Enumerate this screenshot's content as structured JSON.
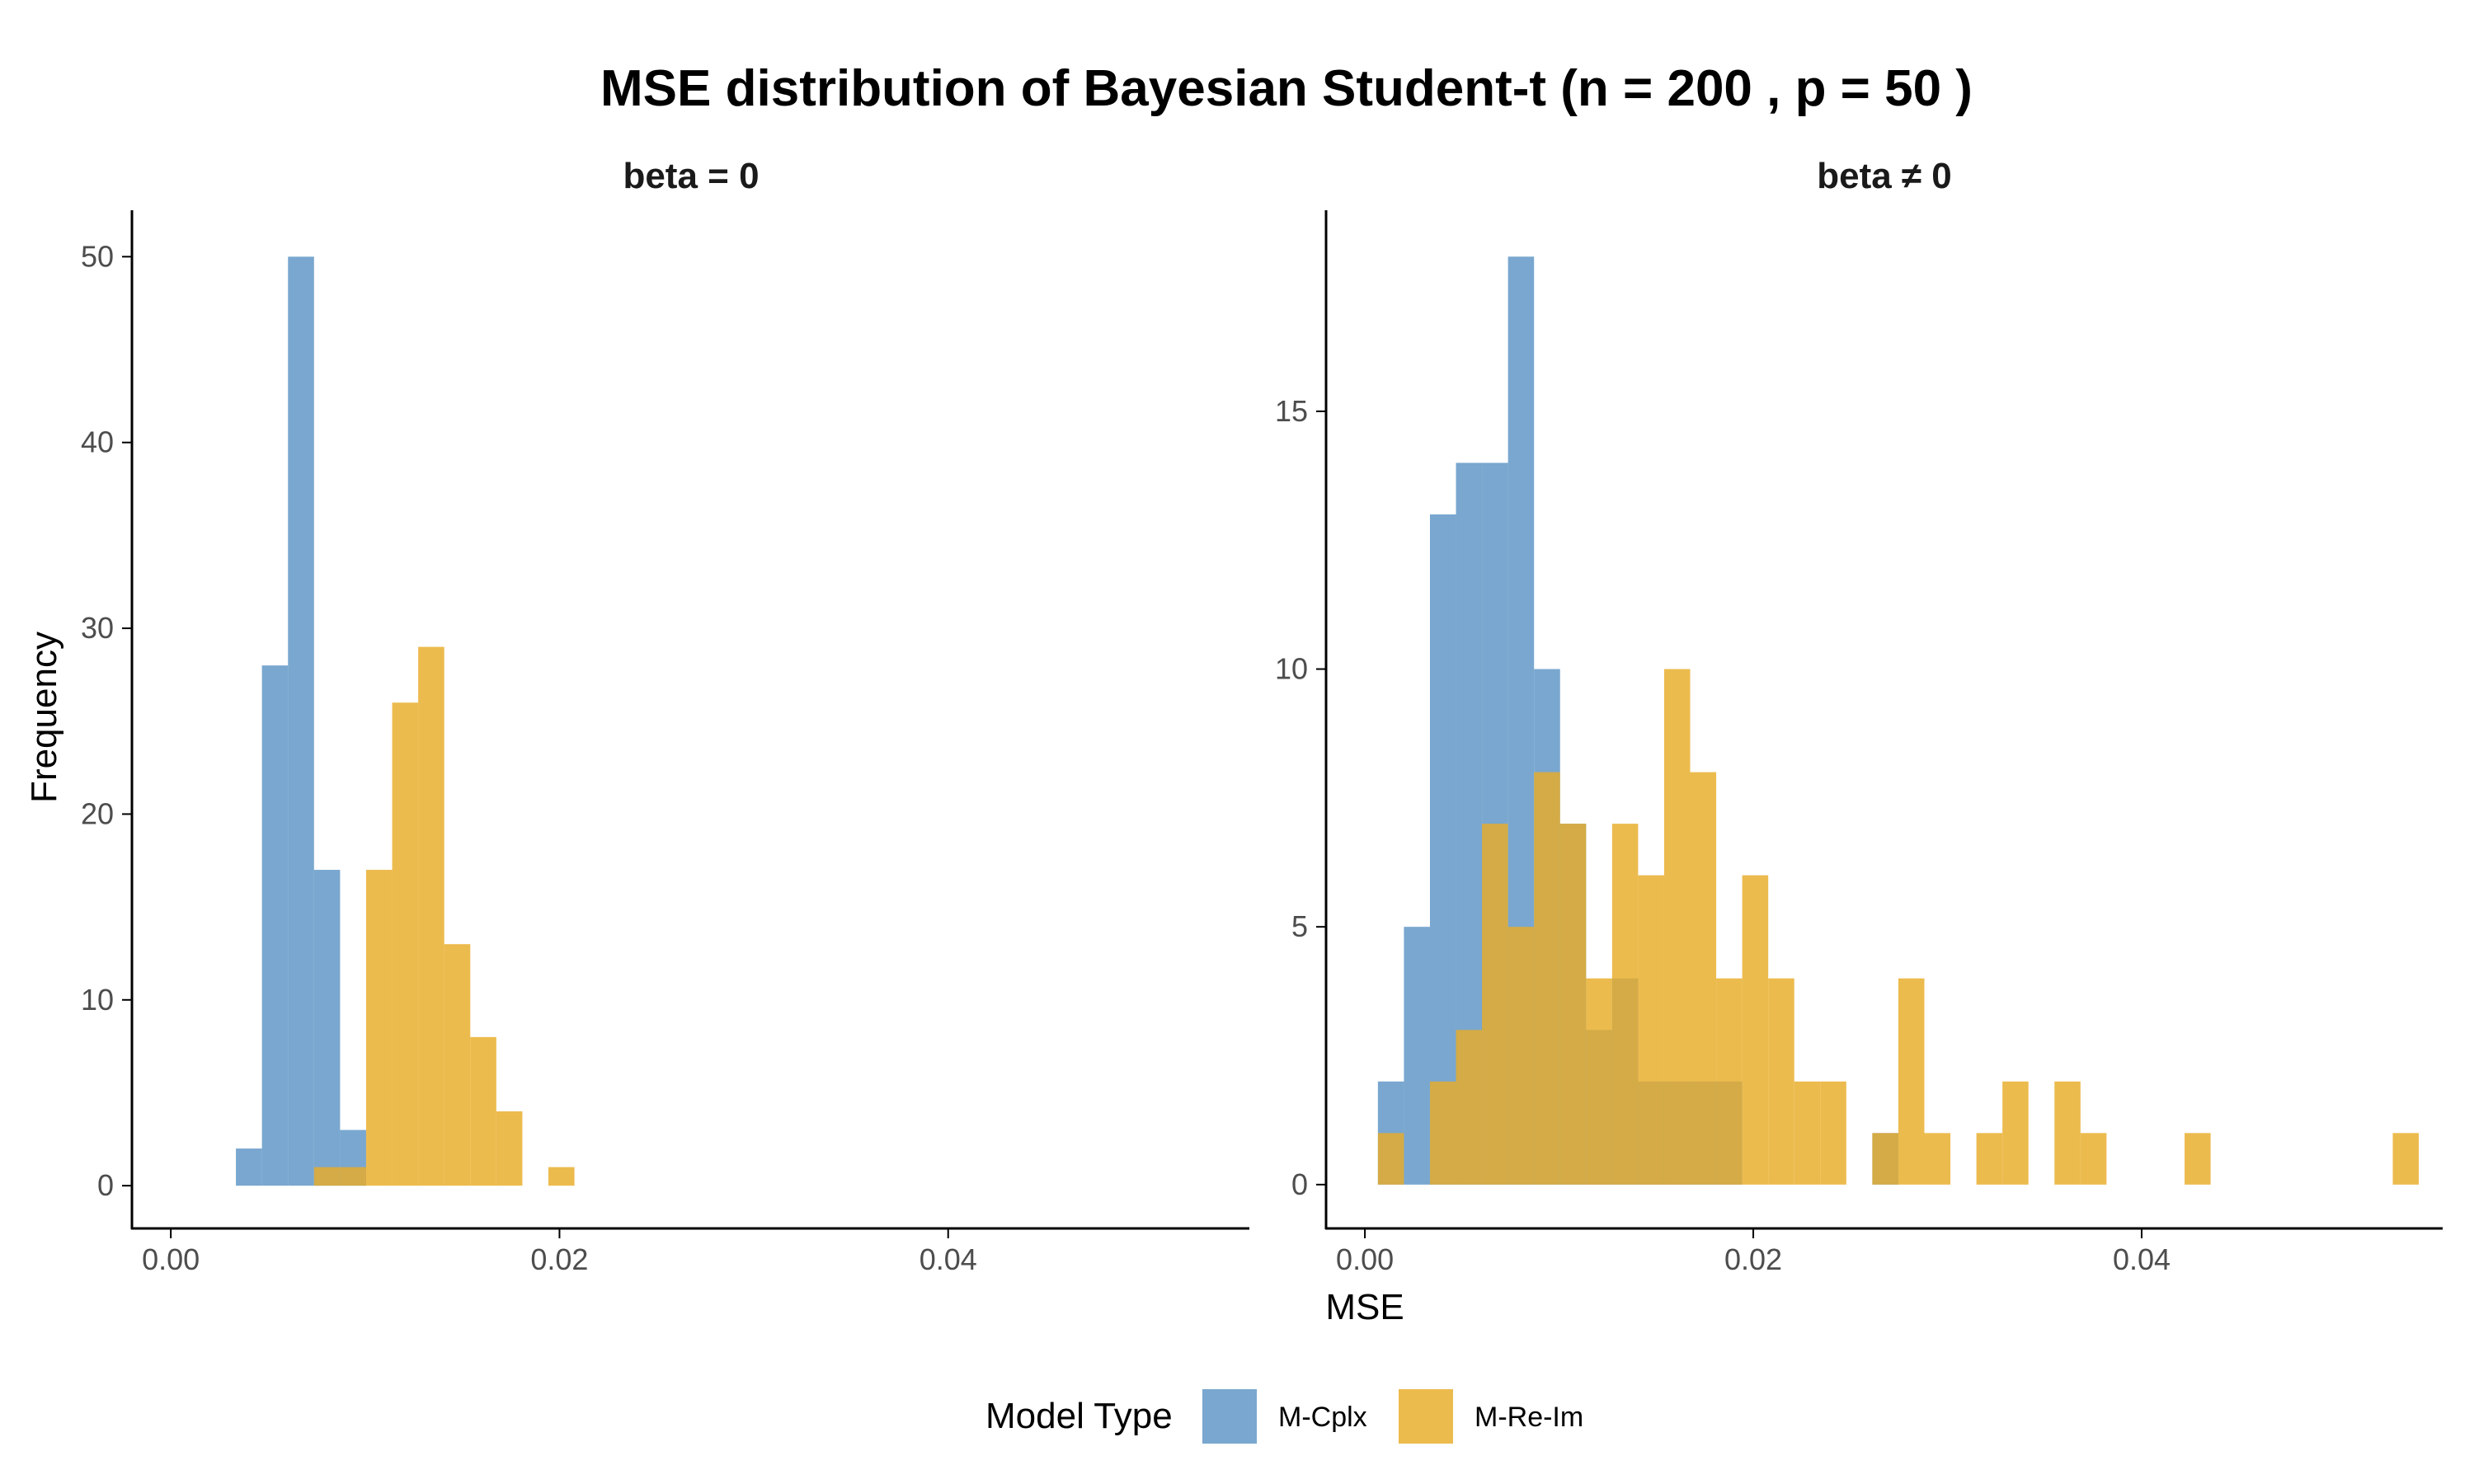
{
  "title": "MSE distribution of Bayesian Student-t (n = 200 , p = 50 )",
  "xlabel": "MSE",
  "ylabel": "Frequency",
  "colors": {
    "M-Cplx": "#5b94c5",
    "M-Re-Im": "#e8ac27",
    "axis": "#000000"
  },
  "legend": {
    "title": "Model Type",
    "items": [
      "M-Cplx",
      "M-Re-Im"
    ]
  },
  "chart_data": [
    {
      "type": "histogram",
      "panel": "beta = 0",
      "xlim": [
        -0.002,
        0.0555
      ],
      "ylim": [
        -2.3,
        52.5
      ],
      "x_ticks": [
        0,
        0.02,
        0.04
      ],
      "x_tick_labels": [
        "0.00",
        "0.02",
        "0.04"
      ],
      "y_ticks": [
        0,
        10,
        20,
        30,
        40,
        50
      ],
      "y_tick_labels": [
        "0",
        "10",
        "20",
        "30",
        "40",
        "50"
      ],
      "bin_width": 0.00134,
      "series": [
        {
          "name": "M-Cplx",
          "bins": [
            {
              "x0": 0.00335,
              "x1": 0.00469,
              "count": 2
            },
            {
              "x0": 0.00469,
              "x1": 0.00603,
              "count": 28
            },
            {
              "x0": 0.00603,
              "x1": 0.00737,
              "count": 50
            },
            {
              "x0": 0.00737,
              "x1": 0.00871,
              "count": 17
            },
            {
              "x0": 0.00871,
              "x1": 0.01005,
              "count": 3
            }
          ]
        },
        {
          "name": "M-Re-Im",
          "bins": [
            {
              "x0": 0.00737,
              "x1": 0.00871,
              "count": 1
            },
            {
              "x0": 0.00871,
              "x1": 0.01005,
              "count": 1
            },
            {
              "x0": 0.01005,
              "x1": 0.01139,
              "count": 17
            },
            {
              "x0": 0.01139,
              "x1": 0.01273,
              "count": 26
            },
            {
              "x0": 0.01273,
              "x1": 0.01407,
              "count": 29
            },
            {
              "x0": 0.01407,
              "x1": 0.01541,
              "count": 13
            },
            {
              "x0": 0.01541,
              "x1": 0.01675,
              "count": 8
            },
            {
              "x0": 0.01675,
              "x1": 0.01809,
              "count": 4
            },
            {
              "x0": 0.01943,
              "x1": 0.02077,
              "count": 1
            }
          ]
        }
      ]
    },
    {
      "type": "histogram",
      "panel": "beta ≠ 0",
      "xlim": [
        -0.002,
        0.0555
      ],
      "ylim": [
        -0.85,
        18.9
      ],
      "x_ticks": [
        0,
        0.02,
        0.04
      ],
      "x_tick_labels": [
        "0.00",
        "0.02",
        "0.04"
      ],
      "y_ticks": [
        0,
        5,
        10,
        15
      ],
      "y_tick_labels": [
        "0",
        "5",
        "10",
        "15"
      ],
      "bin_width": 0.00134,
      "series": [
        {
          "name": "M-Cplx",
          "bins": [
            {
              "x0": 0.00067,
              "x1": 0.00201,
              "count": 2
            },
            {
              "x0": 0.00201,
              "x1": 0.00335,
              "count": 5
            },
            {
              "x0": 0.00335,
              "x1": 0.00469,
              "count": 13
            },
            {
              "x0": 0.00469,
              "x1": 0.00603,
              "count": 14
            },
            {
              "x0": 0.00603,
              "x1": 0.00737,
              "count": 14
            },
            {
              "x0": 0.00737,
              "x1": 0.00871,
              "count": 18
            },
            {
              "x0": 0.00871,
              "x1": 0.01005,
              "count": 10
            },
            {
              "x0": 0.01005,
              "x1": 0.01139,
              "count": 7
            },
            {
              "x0": 0.01139,
              "x1": 0.01273,
              "count": 3
            },
            {
              "x0": 0.01273,
              "x1": 0.01407,
              "count": 4
            },
            {
              "x0": 0.01407,
              "x1": 0.01541,
              "count": 2
            },
            {
              "x0": 0.01541,
              "x1": 0.01675,
              "count": 2
            },
            {
              "x0": 0.01675,
              "x1": 0.01809,
              "count": 2
            },
            {
              "x0": 0.01809,
              "x1": 0.01943,
              "count": 2
            },
            {
              "x0": 0.02613,
              "x1": 0.02747,
              "count": 1
            }
          ]
        },
        {
          "name": "M-Re-Im",
          "bins": [
            {
              "x0": 0.00067,
              "x1": 0.00201,
              "count": 1
            },
            {
              "x0": 0.00335,
              "x1": 0.00469,
              "count": 2
            },
            {
              "x0": 0.00469,
              "x1": 0.00603,
              "count": 3
            },
            {
              "x0": 0.00603,
              "x1": 0.00737,
              "count": 7
            },
            {
              "x0": 0.00737,
              "x1": 0.00871,
              "count": 5
            },
            {
              "x0": 0.00871,
              "x1": 0.01005,
              "count": 8
            },
            {
              "x0": 0.01005,
              "x1": 0.01139,
              "count": 7
            },
            {
              "x0": 0.01139,
              "x1": 0.01273,
              "count": 4
            },
            {
              "x0": 0.01273,
              "x1": 0.01407,
              "count": 7
            },
            {
              "x0": 0.01407,
              "x1": 0.01541,
              "count": 6
            },
            {
              "x0": 0.01541,
              "x1": 0.01675,
              "count": 10
            },
            {
              "x0": 0.01675,
              "x1": 0.01809,
              "count": 8
            },
            {
              "x0": 0.01809,
              "x1": 0.01943,
              "count": 4
            },
            {
              "x0": 0.01943,
              "x1": 0.02077,
              "count": 6
            },
            {
              "x0": 0.02077,
              "x1": 0.02211,
              "count": 4
            },
            {
              "x0": 0.02211,
              "x1": 0.02345,
              "count": 2
            },
            {
              "x0": 0.02345,
              "x1": 0.02479,
              "count": 2
            },
            {
              "x0": 0.02613,
              "x1": 0.02747,
              "count": 1
            },
            {
              "x0": 0.02747,
              "x1": 0.02881,
              "count": 4
            },
            {
              "x0": 0.02881,
              "x1": 0.03015,
              "count": 1
            },
            {
              "x0": 0.03149,
              "x1": 0.03283,
              "count": 1
            },
            {
              "x0": 0.03283,
              "x1": 0.03417,
              "count": 2
            },
            {
              "x0": 0.03551,
              "x1": 0.03685,
              "count": 2
            },
            {
              "x0": 0.03685,
              "x1": 0.03819,
              "count": 1
            },
            {
              "x0": 0.04221,
              "x1": 0.04355,
              "count": 1
            },
            {
              "x0": 0.05293,
              "x1": 0.05427,
              "count": 1
            }
          ]
        }
      ]
    }
  ]
}
